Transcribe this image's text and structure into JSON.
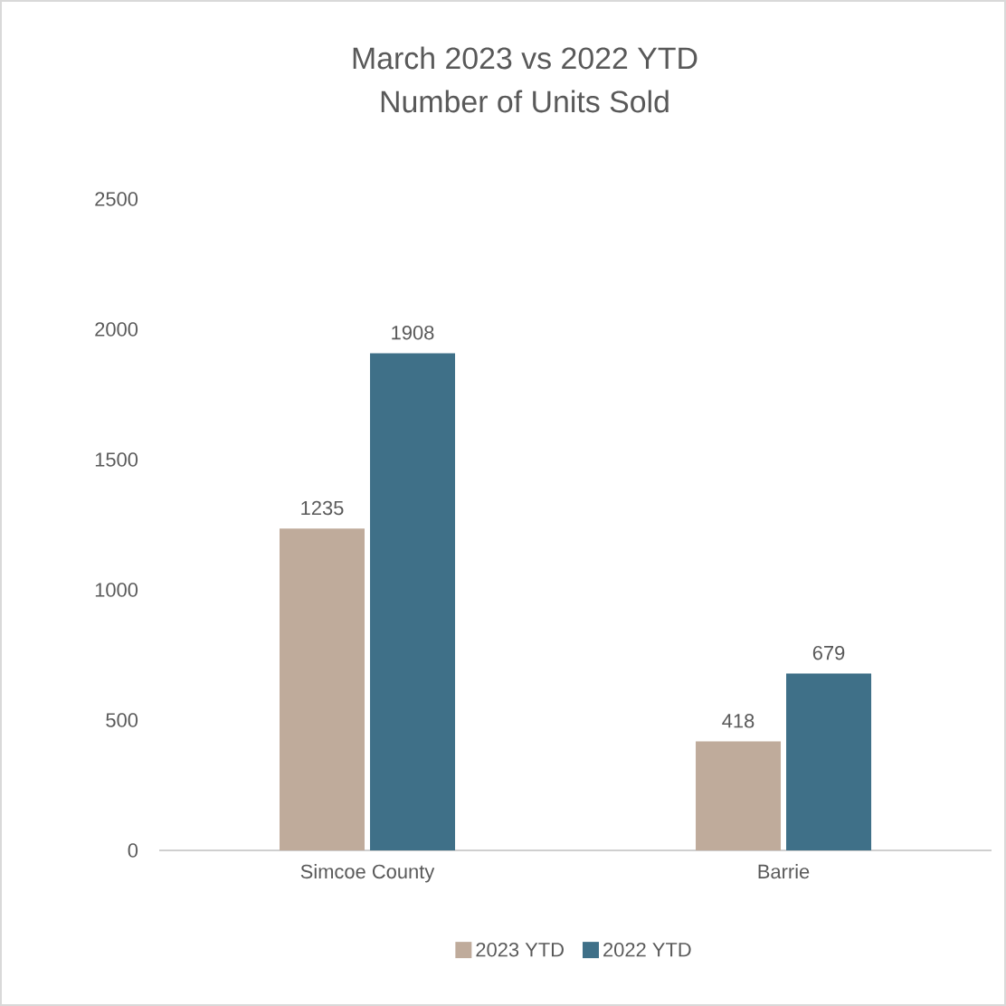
{
  "chart_data": {
    "type": "bar",
    "title": "March 2023 vs 2022 YTD",
    "subtitle": "Number of Units Sold",
    "categories": [
      "Simcoe County",
      "Barrie"
    ],
    "series": [
      {
        "name": "2023 YTD",
        "color": "#bfab9b",
        "values": [
          1235,
          418
        ]
      },
      {
        "name": "2022 YTD",
        "color": "#3f7088",
        "values": [
          1908,
          679
        ]
      }
    ],
    "ylim": [
      0,
      2500
    ],
    "yticks": [
      0,
      500,
      1000,
      1500,
      2000,
      2500
    ],
    "grid": false,
    "legend": "bottom",
    "data_labels": true
  }
}
